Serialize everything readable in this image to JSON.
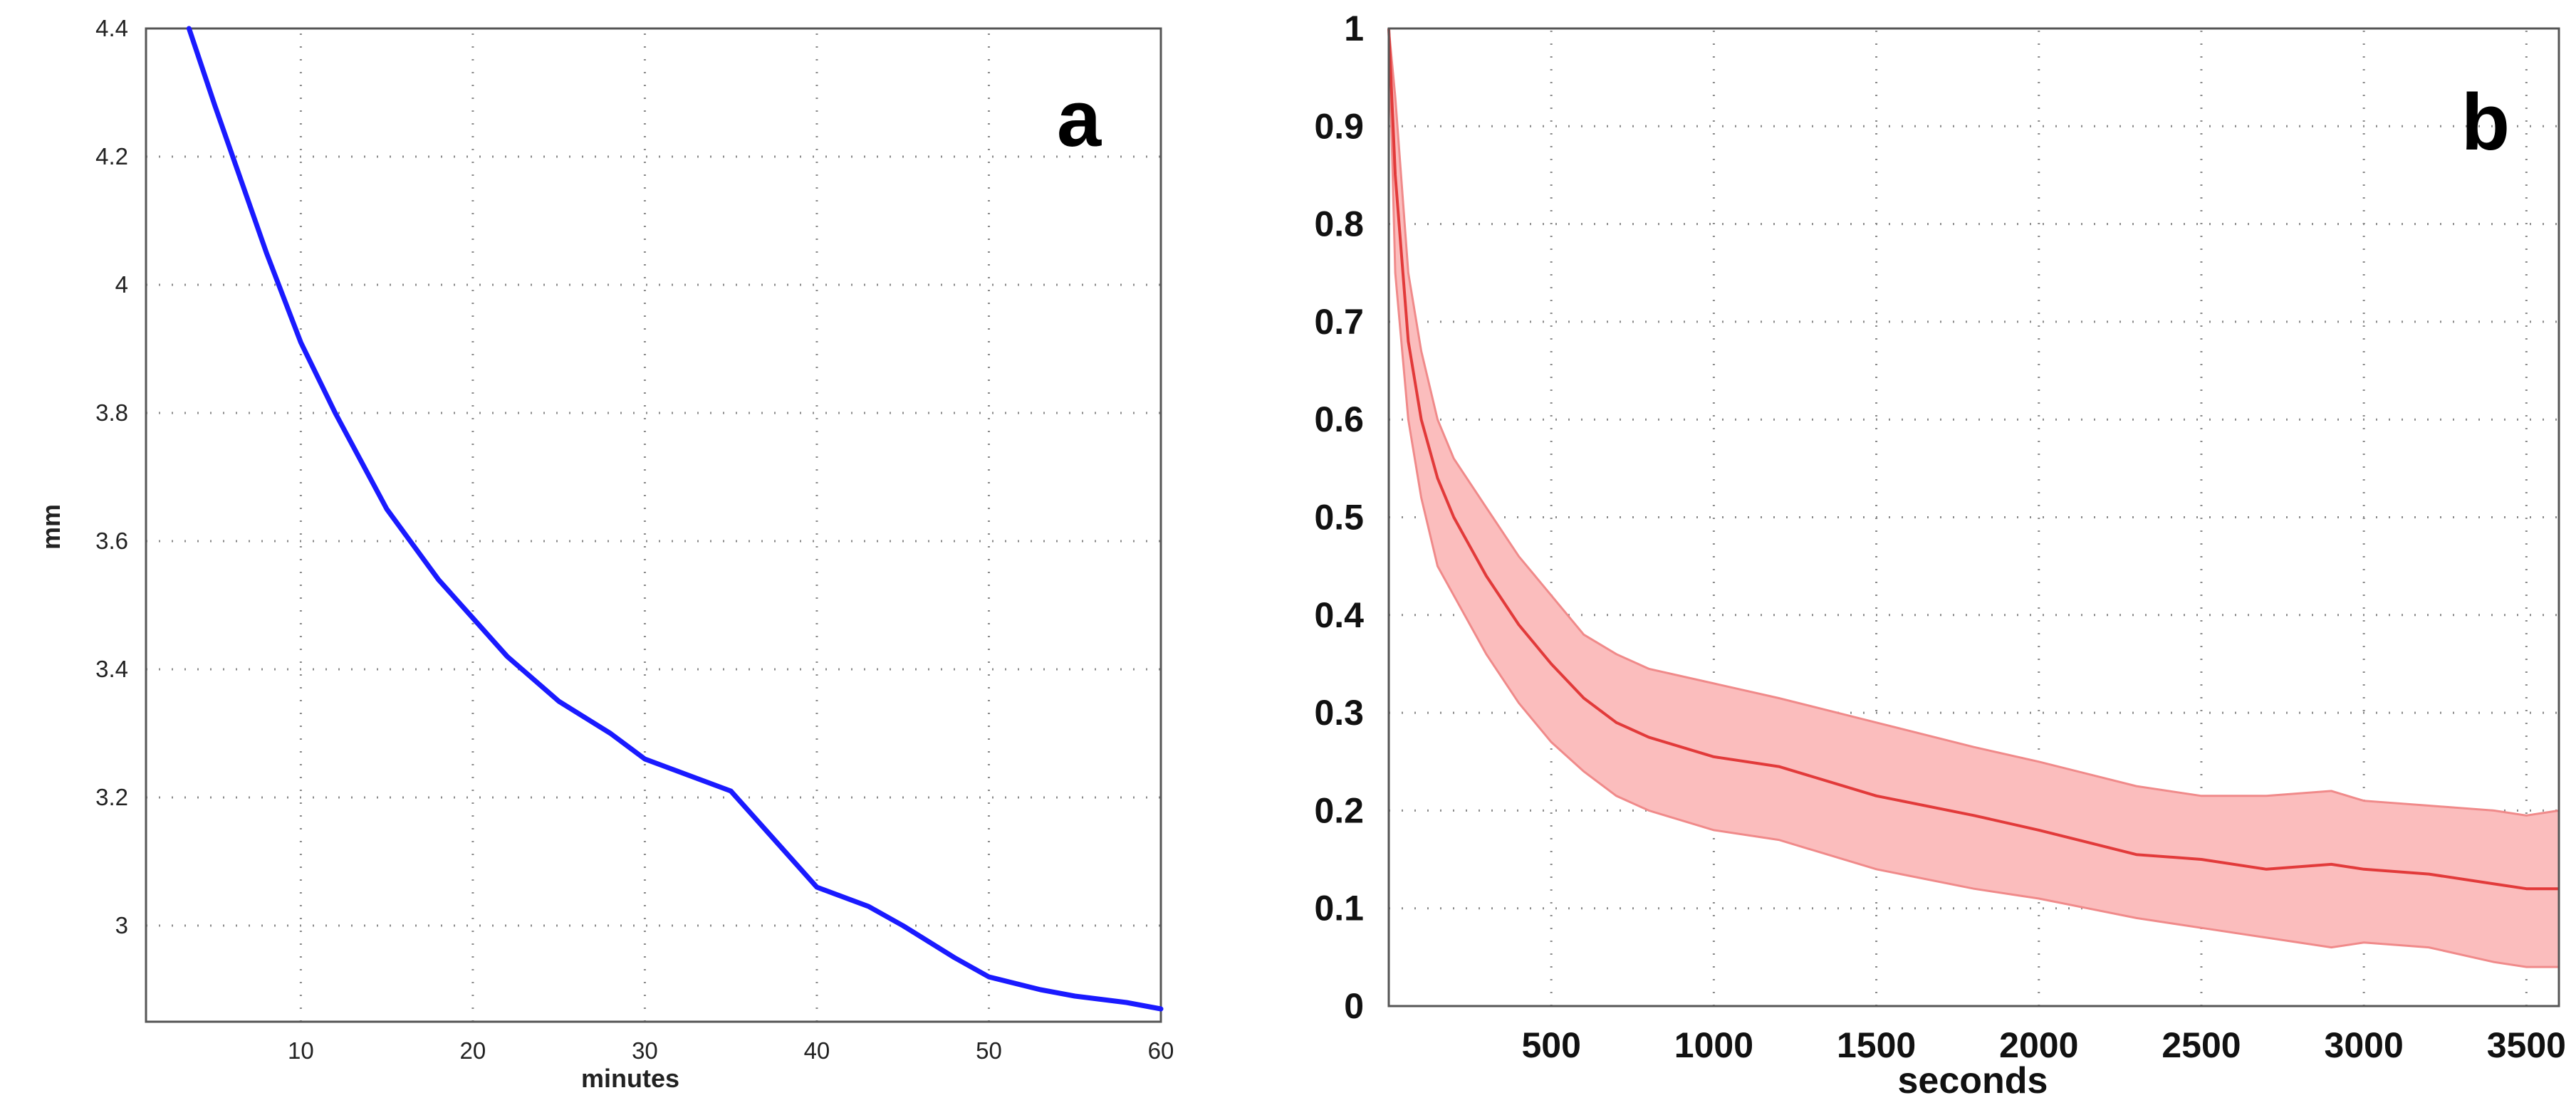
{
  "chart_data": [
    {
      "panel_label": "a",
      "type": "line",
      "xlabel": "minutes",
      "ylabel": "mm",
      "xlim": [
        1,
        60
      ],
      "ylim": [
        2.85,
        4.4
      ],
      "xticks": [
        10,
        20,
        30,
        40,
        50,
        60
      ],
      "yticks": [
        3,
        3.2,
        3.4,
        3.6,
        3.8,
        4,
        4.2,
        4.4
      ],
      "grid": true,
      "colors": {
        "line": "#1a1aff"
      },
      "series": [
        {
          "x": [
            3.5,
            5,
            8,
            10,
            12,
            15,
            18,
            20,
            22,
            25,
            28,
            30,
            33,
            35,
            37,
            40,
            43,
            45,
            48,
            50,
            53,
            55,
            58,
            60
          ],
          "y": [
            4.4,
            4.28,
            4.05,
            3.91,
            3.8,
            3.65,
            3.54,
            3.48,
            3.42,
            3.35,
            3.3,
            3.26,
            3.23,
            3.21,
            3.15,
            3.06,
            3.03,
            3.0,
            2.95,
            2.92,
            2.9,
            2.89,
            2.88,
            2.87
          ]
        }
      ]
    },
    {
      "panel_label": "b",
      "type": "area",
      "xlabel": "seconds",
      "ylabel": "",
      "xlim": [
        0,
        3600
      ],
      "ylim": [
        0,
        1
      ],
      "xticks": [
        500,
        1000,
        1500,
        2000,
        2500,
        3000,
        3500
      ],
      "yticks": [
        0,
        0.1,
        0.2,
        0.3,
        0.4,
        0.5,
        0.6,
        0.7,
        0.8,
        0.9,
        1
      ],
      "grid": true,
      "colors": {
        "line": "#e23a3a",
        "band": "#fbbdbd",
        "band_edge": "#f08a8a"
      },
      "series": [
        {
          "x": [
            0,
            20,
            60,
            100,
            150,
            200,
            300,
            400,
            500,
            600,
            700,
            800,
            1000,
            1200,
            1500,
            1800,
            2000,
            2300,
            2500,
            2700,
            2900,
            3000,
            3200,
            3400,
            3500,
            3600
          ],
          "mean": [
            1.0,
            0.85,
            0.68,
            0.6,
            0.54,
            0.5,
            0.44,
            0.39,
            0.35,
            0.315,
            0.29,
            0.275,
            0.255,
            0.245,
            0.215,
            0.195,
            0.18,
            0.155,
            0.15,
            0.14,
            0.145,
            0.14,
            0.135,
            0.125,
            0.12,
            0.12
          ],
          "upper": [
            1.0,
            0.93,
            0.75,
            0.67,
            0.6,
            0.56,
            0.51,
            0.46,
            0.42,
            0.38,
            0.36,
            0.345,
            0.33,
            0.315,
            0.29,
            0.265,
            0.25,
            0.225,
            0.215,
            0.215,
            0.22,
            0.21,
            0.205,
            0.2,
            0.195,
            0.2
          ],
          "lower": [
            1.0,
            0.75,
            0.6,
            0.52,
            0.45,
            0.42,
            0.36,
            0.31,
            0.27,
            0.24,
            0.215,
            0.2,
            0.18,
            0.17,
            0.14,
            0.12,
            0.11,
            0.09,
            0.08,
            0.07,
            0.06,
            0.065,
            0.06,
            0.045,
            0.04,
            0.04
          ]
        }
      ]
    }
  ]
}
